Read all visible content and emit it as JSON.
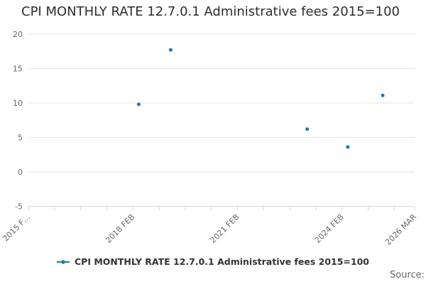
{
  "header": {
    "title": "CPI MONTHLY RATE 12.7.0.1 Administrative fees 2015=100"
  },
  "legend": {
    "label": "CPI MONTHLY RATE 12.7.0.1 Administrative fees 2015=100"
  },
  "footer": {
    "source_label": "Source:"
  },
  "colors": {
    "series": "#1a7db6",
    "grid_line": "#e6e6e6",
    "axis_line": "#ccd6eb",
    "tick_label": "#666666",
    "title_text": "#2d2d2d",
    "legend_text": "#333333",
    "background": "#ffffff"
  },
  "chart_data": {
    "type": "scatter",
    "title": "CPI MONTHLY RATE 12.7.0.1 Administrative fees 2015=100",
    "legend_position": "bottom-center",
    "x_axis": {
      "kind": "time",
      "start": "2015 FEB",
      "end": "2026 MAR",
      "range_months": 133,
      "tick_interval_months": 9,
      "tick_months": [
        0,
        9,
        18,
        27,
        36,
        45,
        54,
        63,
        72,
        81,
        90,
        99,
        108,
        117,
        126,
        133
      ],
      "labels": [
        {
          "month": 0,
          "text": "2015 F…"
        },
        {
          "month": 36,
          "text": "2018 FEB"
        },
        {
          "month": 72,
          "text": "2021 FEB"
        },
        {
          "month": 108,
          "text": "2024 FEB"
        },
        {
          "month": 133,
          "text": "2026 MAR"
        }
      ],
      "label_rotation_deg": -45
    },
    "y_axis": {
      "min": -5,
      "max": 20,
      "tick_interval": 5,
      "ticks": [
        20,
        15,
        10,
        5,
        0,
        -5
      ],
      "grid": true
    },
    "series": [
      {
        "name": "CPI MONTHLY RATE 12.7.0.1 Administrative fees 2015=100",
        "marker": "circle",
        "points": [
          {
            "date": "2018 APR",
            "month": 38,
            "value": 9.8
          },
          {
            "date": "2019 MAR",
            "month": 49,
            "value": 17.7
          },
          {
            "date": "2023 FEB",
            "month": 96,
            "value": 6.2
          },
          {
            "date": "2024 APR",
            "month": 110,
            "value": 3.6
          },
          {
            "date": "2025 APR",
            "month": 122,
            "value": 11.1
          }
        ]
      }
    ]
  }
}
